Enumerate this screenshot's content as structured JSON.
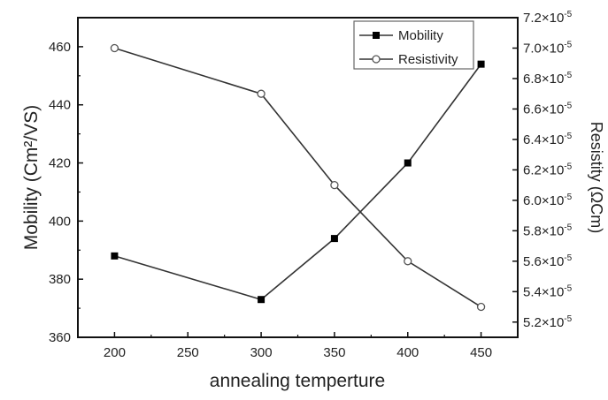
{
  "chart_data": {
    "type": "line",
    "title": "",
    "xlabel": "annealing temperture",
    "ylabel": "Mobility (Cm²/VS)",
    "y2label": "Resistity (ΩCm)",
    "xlim": [
      175,
      475
    ],
    "ylim": [
      360,
      470
    ],
    "y2lim": [
      5.1,
      7.2
    ],
    "x_ticks": [
      200,
      250,
      300,
      350,
      400,
      450
    ],
    "y_ticks": [
      360,
      380,
      400,
      420,
      440,
      460
    ],
    "y2_ticks": [
      {
        "value": 5.2,
        "base": "5.2×10",
        "exp": "-5"
      },
      {
        "value": 5.4,
        "base": "5.4×10",
        "exp": "-5"
      },
      {
        "value": 5.6,
        "base": "5.6×10",
        "exp": "-5"
      },
      {
        "value": 5.8,
        "base": "5.8×10",
        "exp": "-5"
      },
      {
        "value": 6.0,
        "base": "6.0×10",
        "exp": "-5"
      },
      {
        "value": 6.2,
        "base": "6.2×10",
        "exp": "-5"
      },
      {
        "value": 6.4,
        "base": "6.4×10",
        "exp": "-5"
      },
      {
        "value": 6.6,
        "base": "6.6×10",
        "exp": "-5"
      },
      {
        "value": 6.8,
        "base": "6.8×10",
        "exp": "-5"
      },
      {
        "value": 7.0,
        "base": "7.0×10",
        "exp": "-5"
      },
      {
        "value": 7.2,
        "base": "7.2×10",
        "exp": "-5"
      }
    ],
    "x": [
      200,
      300,
      350,
      400,
      450
    ],
    "series": [
      {
        "name": "Mobility",
        "axis": "left",
        "marker": "filled-square",
        "values": [
          388,
          373,
          394,
          420,
          454
        ]
      },
      {
        "name": "Resistivity",
        "axis": "right",
        "unit_multiplier": "1e-5",
        "marker": "open-circle",
        "values": [
          7.0,
          6.7,
          6.1,
          5.6,
          5.3
        ]
      }
    ],
    "legend": "top-right",
    "grid": false,
    "color": "#333333"
  }
}
